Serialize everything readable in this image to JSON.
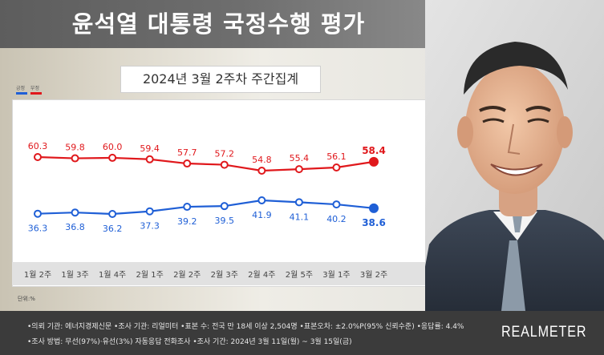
{
  "header": {
    "title": "윤석열 대통령 국정수행 평가"
  },
  "subtitle": "2024년 3월 2주차 주간집계",
  "legend": {
    "approve_label": "긍정",
    "disapprove_label": "부정"
  },
  "unit": "단위:%",
  "colors": {
    "approve": "#1f5fd6",
    "disapprove": "#e0181c"
  },
  "chart_data": {
    "type": "line",
    "categories": [
      "1월 2주",
      "1월 3주",
      "1월 4주",
      "2월 1주",
      "2월 2주",
      "2월 3주",
      "2월 4주",
      "2월 5주",
      "3월 1주",
      "3월 2주"
    ],
    "series": [
      {
        "name": "부정",
        "values": [
          60.3,
          59.8,
          60.0,
          59.4,
          57.7,
          57.2,
          54.8,
          55.4,
          56.1,
          58.4
        ]
      },
      {
        "name": "긍정",
        "values": [
          36.3,
          36.8,
          36.2,
          37.3,
          39.2,
          39.5,
          41.9,
          41.1,
          40.2,
          38.6
        ]
      }
    ],
    "grid": false
  },
  "footer": {
    "line1": "•의뢰 기관: 에너지경제신문 •조사 기관: 리얼미터 •표본 수: 전국 만 18세 이상 2,504명 •표본오차: ±2.0%P(95% 신뢰수준) •응답률: 4.4%",
    "line2": "•조사 방법: 무선(97%)·유선(3%) 자동응답 전화조사 •조사 기간: 2024년 3월 11일(월) ~ 3월 15일(금)",
    "logo": "REALMETER"
  }
}
